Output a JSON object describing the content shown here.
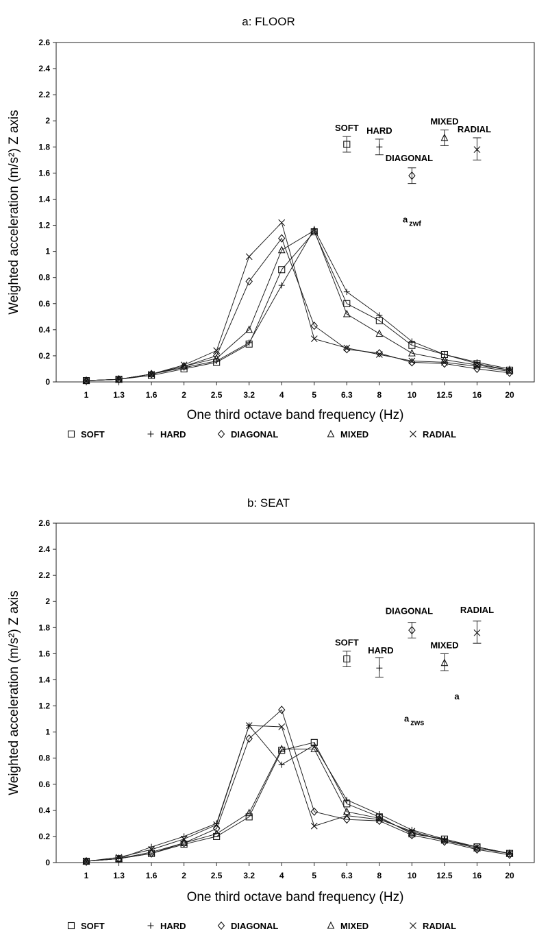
{
  "chart_data": [
    {
      "type": "line",
      "title": "a: FLOOR",
      "xlabel": "One third octave band frequency (Hz)",
      "ylabel": "Weighted acceleration (m/s²) Z axis",
      "categories": [
        "1",
        "1.3",
        "1.6",
        "2",
        "2.5",
        "3.2",
        "4",
        "5",
        "6.3",
        "8",
        "10",
        "12.5",
        "16",
        "20"
      ],
      "ylim": [
        0,
        2.6
      ],
      "yticks": [
        "0",
        "0.2",
        "0.4",
        "0.6",
        "0.8",
        "1",
        "1.2",
        "1.4",
        "1.6",
        "1.8",
        "2",
        "2.2",
        "2.4",
        "2.6"
      ],
      "grid": false,
      "legend_position": "bottom",
      "series": [
        {
          "name": "SOFT",
          "marker": "□",
          "values": [
            0.01,
            0.02,
            0.05,
            0.1,
            0.15,
            0.29,
            0.86,
            1.15,
            0.6,
            0.47,
            0.28,
            0.21,
            0.14,
            0.09
          ]
        },
        {
          "name": "HARD",
          "marker": "+",
          "values": [
            0.01,
            0.02,
            0.06,
            0.11,
            0.16,
            0.3,
            0.74,
            1.17,
            0.69,
            0.51,
            0.31,
            0.21,
            0.15,
            0.1
          ]
        },
        {
          "name": "DIAGONAL",
          "marker": "◇",
          "values": [
            0.01,
            0.02,
            0.06,
            0.12,
            0.2,
            0.77,
            1.1,
            0.43,
            0.25,
            0.22,
            0.15,
            0.14,
            0.1,
            0.07
          ]
        },
        {
          "name": "MIXED",
          "marker": "△",
          "values": [
            0.01,
            0.02,
            0.06,
            0.12,
            0.18,
            0.4,
            1.01,
            1.16,
            0.52,
            0.37,
            0.22,
            0.17,
            0.13,
            0.09
          ]
        },
        {
          "name": "RADIAL",
          "marker": "×",
          "values": [
            0.01,
            0.02,
            0.06,
            0.13,
            0.24,
            0.96,
            1.22,
            0.33,
            0.26,
            0.21,
            0.16,
            0.15,
            0.12,
            0.08
          ]
        }
      ],
      "annotation_label": "a",
      "annotation_sub": "zwf",
      "overall": [
        {
          "label": "SOFT",
          "marker": "□",
          "x": 8.0,
          "value": 1.82,
          "low": 1.76,
          "high": 1.88
        },
        {
          "label": "HARD",
          "marker": "+",
          "x": 9.0,
          "value": 1.8,
          "low": 1.74,
          "high": 1.86
        },
        {
          "label": "DIAGONAL",
          "marker": "◇",
          "x": 10.0,
          "value": 1.58,
          "low": 1.52,
          "high": 1.64
        },
        {
          "label": "MIXED",
          "marker": "△",
          "x": 11.0,
          "value": 1.87,
          "low": 1.81,
          "high": 1.93
        },
        {
          "label": "RADIAL",
          "marker": "×",
          "x": 12.0,
          "value": 1.78,
          "low": 1.7,
          "high": 1.87
        }
      ]
    },
    {
      "type": "line",
      "title": "b: SEAT",
      "xlabel": "One third octave band frequency (Hz)",
      "ylabel": "Weighted acceleration (m/s²) Z axis",
      "categories": [
        "1",
        "1.3",
        "1.6",
        "2",
        "2.5",
        "3.2",
        "4",
        "5",
        "6.3",
        "8",
        "10",
        "12.5",
        "16",
        "20"
      ],
      "ylim": [
        0,
        2.6
      ],
      "yticks": [
        "0",
        "0.2",
        "0.4",
        "0.6",
        "0.8",
        "1",
        "1.2",
        "1.4",
        "1.6",
        "1.8",
        "2",
        "2.2",
        "2.4",
        "2.6"
      ],
      "grid": false,
      "legend_position": "bottom",
      "series": [
        {
          "name": "SOFT",
          "marker": "□",
          "values": [
            0.01,
            0.03,
            0.07,
            0.14,
            0.2,
            0.35,
            0.86,
            0.92,
            0.45,
            0.35,
            0.22,
            0.18,
            0.12,
            0.07
          ]
        },
        {
          "name": "HARD",
          "marker": "+",
          "values": [
            0.01,
            0.03,
            0.12,
            0.2,
            0.3,
            1.05,
            0.75,
            0.9,
            0.48,
            0.37,
            0.25,
            0.18,
            0.12,
            0.07
          ]
        },
        {
          "name": "DIAGONAL",
          "marker": "◇",
          "values": [
            0.01,
            0.03,
            0.07,
            0.15,
            0.26,
            0.95,
            1.17,
            0.39,
            0.33,
            0.32,
            0.21,
            0.16,
            0.1,
            0.06
          ]
        },
        {
          "name": "MIXED",
          "marker": "△",
          "values": [
            0.01,
            0.03,
            0.08,
            0.15,
            0.22,
            0.38,
            0.87,
            0.87,
            0.39,
            0.34,
            0.23,
            0.17,
            0.11,
            0.07
          ]
        },
        {
          "name": "RADIAL",
          "marker": "×",
          "values": [
            0.01,
            0.04,
            0.1,
            0.18,
            0.29,
            1.05,
            1.04,
            0.28,
            0.36,
            0.33,
            0.24,
            0.17,
            0.12,
            0.07
          ]
        }
      ],
      "annotation_label": "a",
      "annotation_sub": "zws",
      "extra_text": "a",
      "overall": [
        {
          "label": "SOFT",
          "marker": "□",
          "x": 8.0,
          "value": 1.56,
          "low": 1.5,
          "high": 1.62
        },
        {
          "label": "HARD",
          "marker": "+",
          "x": 9.0,
          "value": 1.49,
          "low": 1.42,
          "high": 1.57
        },
        {
          "label": "DIAGONAL",
          "marker": "◇",
          "x": 10.0,
          "value": 1.78,
          "low": 1.72,
          "high": 1.84
        },
        {
          "label": "MIXED",
          "marker": "△",
          "x": 11.0,
          "value": 1.53,
          "low": 1.47,
          "high": 1.6
        },
        {
          "label": "RADIAL",
          "marker": "×",
          "x": 12.0,
          "value": 1.76,
          "low": 1.68,
          "high": 1.85
        }
      ]
    }
  ]
}
